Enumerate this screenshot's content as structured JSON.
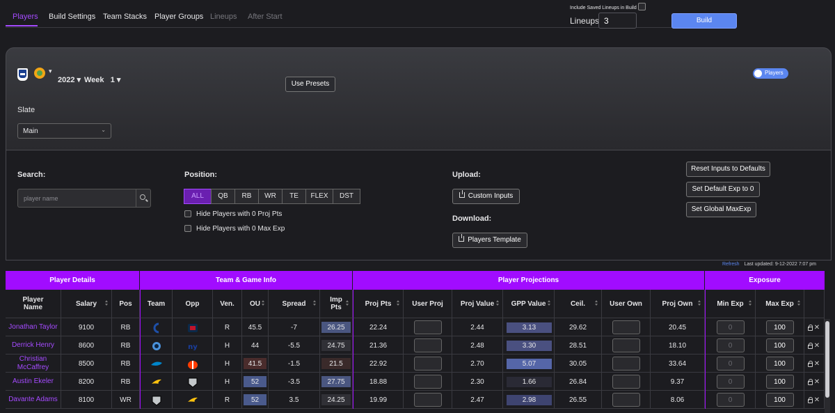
{
  "nav": {
    "tabs": [
      {
        "label": "Players",
        "state": "active"
      },
      {
        "label": "Build Settings",
        "state": "normal"
      },
      {
        "label": "Team Stacks",
        "state": "normal"
      },
      {
        "label": "Player Groups",
        "state": "normal"
      },
      {
        "label": "Lineups",
        "state": "disabled"
      },
      {
        "label": "After Start",
        "state": "disabled"
      }
    ]
  },
  "build": {
    "include_saved_label": "Include Saved Lineups in Build",
    "lineups_label": "Lineups",
    "lineups_value": "3",
    "build_label": "Build"
  },
  "slate_panel": {
    "year": "2022",
    "week_label": "Week",
    "week_value": "1",
    "presets_label": "Use Presets",
    "toggle_label": "Players",
    "slate_label": "Slate",
    "slate_value": "Main"
  },
  "filters": {
    "search_label": "Search:",
    "search_placeholder": "player name",
    "position_label": "Position:",
    "positions": [
      "ALL",
      "QB",
      "RB",
      "WR",
      "TE",
      "FLEX",
      "DST"
    ],
    "active_position": "ALL",
    "hide_zero_proj": "Hide Players with 0 Proj Pts",
    "hide_zero_max": "Hide Players with 0 Max Exp",
    "upload_label": "Upload:",
    "custom_inputs": "Custom Inputs",
    "download_label": "Download:",
    "players_template": "Players Template",
    "reset_defaults": "Reset Inputs to Defaults",
    "set_default_exp": "Set Default Exp to 0",
    "set_global_maxexp": "Set Global MaxExp"
  },
  "refresh": {
    "refresh_label": "Refresh",
    "last_updated": "Last updated: 9-12-2022 7:07 pm"
  },
  "table": {
    "groups": [
      "Player Details",
      "Team & Game Info",
      "Player Projections",
      "Exposure"
    ],
    "headers": [
      "Player Name",
      "Salary",
      "Pos",
      "Team",
      "Opp",
      "Ven.",
      "OU",
      "Spread",
      "Imp Pts",
      "Proj Pts",
      "User Proj",
      "Proj Value",
      "GPP Value",
      "Ceil.",
      "User Own",
      "Proj Own",
      "Min Exp",
      "Max Exp"
    ],
    "rows": [
      {
        "name": "Jonathan Taylor",
        "salary": "9100",
        "pos": "RB",
        "team": "colts",
        "opp": "texans",
        "ven": "R",
        "ou": "45.5",
        "spread": "-7",
        "imp": "26.25",
        "proj": "22.24",
        "user_proj": "",
        "proj_value": "2.44",
        "gpp": "3.13",
        "ceil": "29.62",
        "user_own": "",
        "proj_own": "20.45",
        "min_exp": "0",
        "max_exp": "100"
      },
      {
        "name": "Derrick Henry",
        "salary": "8600",
        "pos": "RB",
        "team": "titans",
        "opp": "giants",
        "ven": "H",
        "ou": "44",
        "spread": "-5.5",
        "imp": "24.75",
        "proj": "21.36",
        "user_proj": "",
        "proj_value": "2.48",
        "gpp": "3.30",
        "ceil": "28.51",
        "user_own": "",
        "proj_own": "18.10",
        "min_exp": "0",
        "max_exp": "100"
      },
      {
        "name": "Christian McCaffrey",
        "salary": "8500",
        "pos": "RB",
        "team": "panthers",
        "opp": "browns",
        "ven": "H",
        "ou": "41.5",
        "spread": "-1.5",
        "imp": "21.5",
        "proj": "22.92",
        "user_proj": "",
        "proj_value": "2.70",
        "gpp": "5.07",
        "ceil": "30.05",
        "user_own": "",
        "proj_own": "33.64",
        "min_exp": "0",
        "max_exp": "100"
      },
      {
        "name": "Austin Ekeler",
        "salary": "8200",
        "pos": "RB",
        "team": "chargers",
        "opp": "raiders",
        "ven": "H",
        "ou": "52",
        "spread": "-3.5",
        "imp": "27.75",
        "proj": "18.88",
        "user_proj": "",
        "proj_value": "2.30",
        "gpp": "1.66",
        "ceil": "26.84",
        "user_own": "",
        "proj_own": "9.37",
        "min_exp": "0",
        "max_exp": "100"
      },
      {
        "name": "Davante Adams",
        "salary": "8100",
        "pos": "WR",
        "team": "raiders",
        "opp": "chargers",
        "ven": "R",
        "ou": "52",
        "spread": "3.5",
        "imp": "24.25",
        "proj": "19.99",
        "user_proj": "",
        "proj_value": "2.47",
        "gpp": "2.98",
        "ceil": "26.55",
        "user_own": "",
        "proj_own": "8.06",
        "min_exp": "0",
        "max_exp": "100"
      }
    ]
  },
  "colors": {
    "accent": "#a10cff",
    "link": "#a54bff",
    "primary_button": "#5b86f0",
    "ou_low": "#4a2c2c",
    "ou_high": "#4a5a8c"
  }
}
